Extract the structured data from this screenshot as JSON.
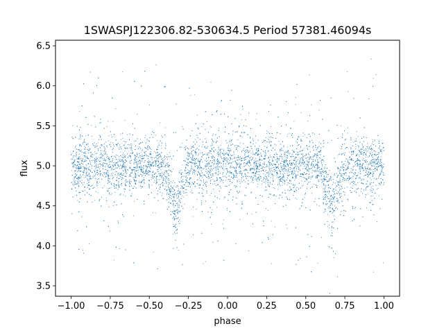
{
  "chart_data": {
    "type": "scatter",
    "title": "1SWASPJ122306.82-530634.5 Period 57381.46094s",
    "xlabel": "phase",
    "ylabel": "flux",
    "xlim": [
      -1.1,
      1.1
    ],
    "ylim": [
      3.37,
      6.57
    ],
    "x_ticks": [
      -1.0,
      -0.75,
      -0.5,
      -0.25,
      0.0,
      0.25,
      0.5,
      0.75,
      1.0
    ],
    "x_tick_labels": [
      "−1.00",
      "−0.75",
      "−0.50",
      "−0.25",
      "0.00",
      "0.25",
      "0.50",
      "0.75",
      "1.00"
    ],
    "y_ticks": [
      3.5,
      4.0,
      4.5,
      5.0,
      5.5,
      6.0,
      6.5
    ],
    "y_tick_labels": [
      "3.5",
      "4.0",
      "4.5",
      "5.0",
      "5.5",
      "6.0",
      "6.5"
    ],
    "grid": false,
    "marker_color": "#1f77b4",
    "phase_range": [
      -1.0,
      1.0
    ],
    "baseline_flux": 5.0,
    "eclipse_phases": [
      -0.33,
      0.67
    ],
    "eclipse_min_flux": 4.45,
    "eclipse_halfwidth_phase": 0.1
  }
}
